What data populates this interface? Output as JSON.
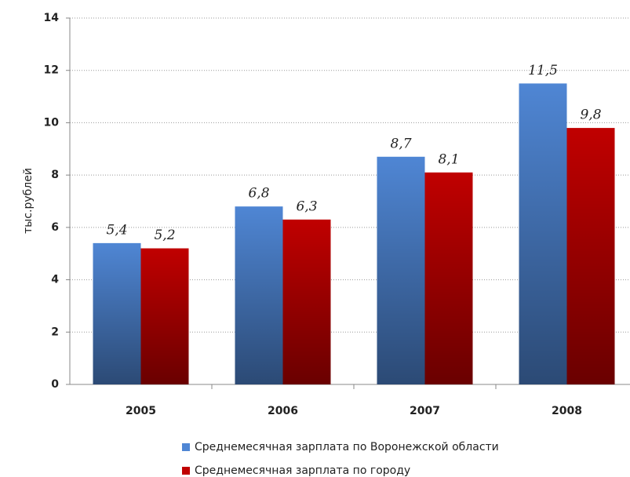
{
  "chart_data": {
    "type": "bar",
    "y_label": "тыс.рублей",
    "categories": [
      "2005",
      "2006",
      "2007",
      "2008"
    ],
    "series": [
      {
        "name": "Среднемесячная зарплата по Воронежской  области",
        "color": "#4f86d4",
        "values": [
          5.4,
          6.8,
          8.7,
          11.5
        ],
        "value_labels": [
          "5,4",
          "6,8",
          "8,7",
          "11,5"
        ]
      },
      {
        "name": "Среднемесячная зарплата по городу",
        "color": "#c00000",
        "values": [
          5.2,
          6.3,
          8.1,
          9.8
        ],
        "value_labels": [
          "5,2",
          "6,3",
          "8,1",
          "9,8"
        ]
      }
    ],
    "ylim": [
      0,
      14
    ],
    "yticks": [
      0,
      2,
      4,
      6,
      8,
      10,
      12,
      14
    ],
    "grid": true
  }
}
